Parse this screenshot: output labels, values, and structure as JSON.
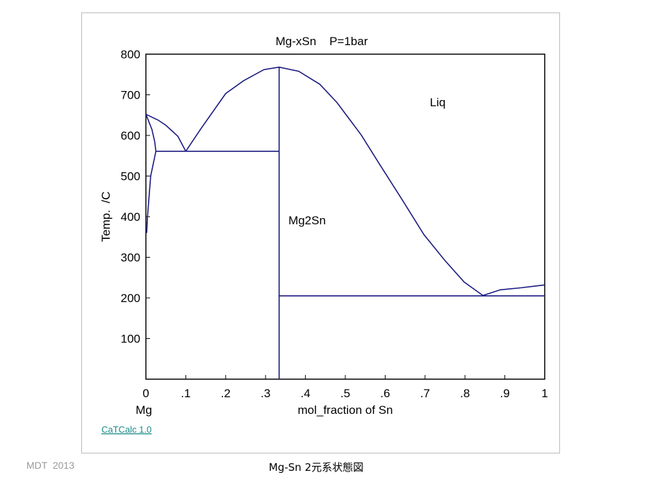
{
  "chart_data": {
    "type": "line",
    "title": "Mg-xSn    P=1bar",
    "xlabel": "mol_fraction of Sn",
    "ylabel": "Temp.  /C",
    "origin_label": "Mg",
    "annotations": [
      "Liq",
      "Mg2Sn"
    ],
    "xlim": [
      0,
      1
    ],
    "ylim": [
      0,
      800
    ],
    "xticks": [
      0,
      {
        "value": 0.1,
        "label": ".1"
      },
      {
        "value": 0.2,
        "label": ".2"
      },
      {
        "value": 0.3,
        "label": ".3"
      },
      {
        "value": 0.4,
        "label": ".4"
      },
      {
        "value": 0.5,
        "label": ".5"
      },
      {
        "value": 0.6,
        "label": ".6"
      },
      {
        "value": 0.7,
        "label": ".7"
      },
      {
        "value": 0.8,
        "label": ".8"
      },
      {
        "value": 0.9,
        "label": ".9"
      },
      1
    ],
    "yticks": [
      100,
      200,
      300,
      400,
      500,
      600,
      700,
      800
    ],
    "series": [
      {
        "color": "#1a1a80",
        "x": [
          0,
          0.03,
          0.05,
          0.08,
          0.1
        ],
        "values": [
          652,
          638,
          625,
          598,
          561
        ]
      },
      {
        "color": "#1a1a80",
        "x": [
          0.1,
          0.139,
          0.2,
          0.244,
          0.296,
          0.334,
          0.383,
          0.436,
          0.479,
          0.54,
          0.584,
          0.645,
          0.697,
          0.749,
          0.798,
          0.845
        ],
        "values": [
          561,
          618,
          703,
          734,
          762,
          768,
          758,
          726,
          681,
          601,
          532,
          438,
          356,
          293,
          239,
          206
        ]
      },
      {
        "color": "#1a1a80",
        "x": [
          0.845,
          0.889,
          0.941,
          1
        ],
        "values": [
          206,
          220,
          225,
          232
        ]
      },
      {
        "color": "#1a1a80",
        "x": [
          0,
          0.015,
          0.022,
          0.025
        ],
        "values": [
          652,
          615,
          585,
          561
        ]
      },
      {
        "color": "#1a1a80",
        "x": [
          0.025,
          0.012,
          0.008,
          0.004,
          0.002
        ],
        "values": [
          561,
          500,
          450,
          400,
          360
        ]
      },
      {
        "color": "#1a1a80",
        "x": [
          0.025,
          0.334
        ],
        "values": [
          561,
          561
        ]
      },
      {
        "color": "#1a1a80",
        "x": [
          0.334,
          0.334
        ],
        "values": [
          0,
          768
        ]
      },
      {
        "color": "#1a1a80",
        "x": [
          0.334,
          1
        ],
        "values": [
          205,
          205
        ]
      }
    ]
  },
  "software_link": "CaTCalc 1.0",
  "footer": {
    "credit": "MDT  2013",
    "caption": "Mg-Sn 2元系状態図"
  }
}
